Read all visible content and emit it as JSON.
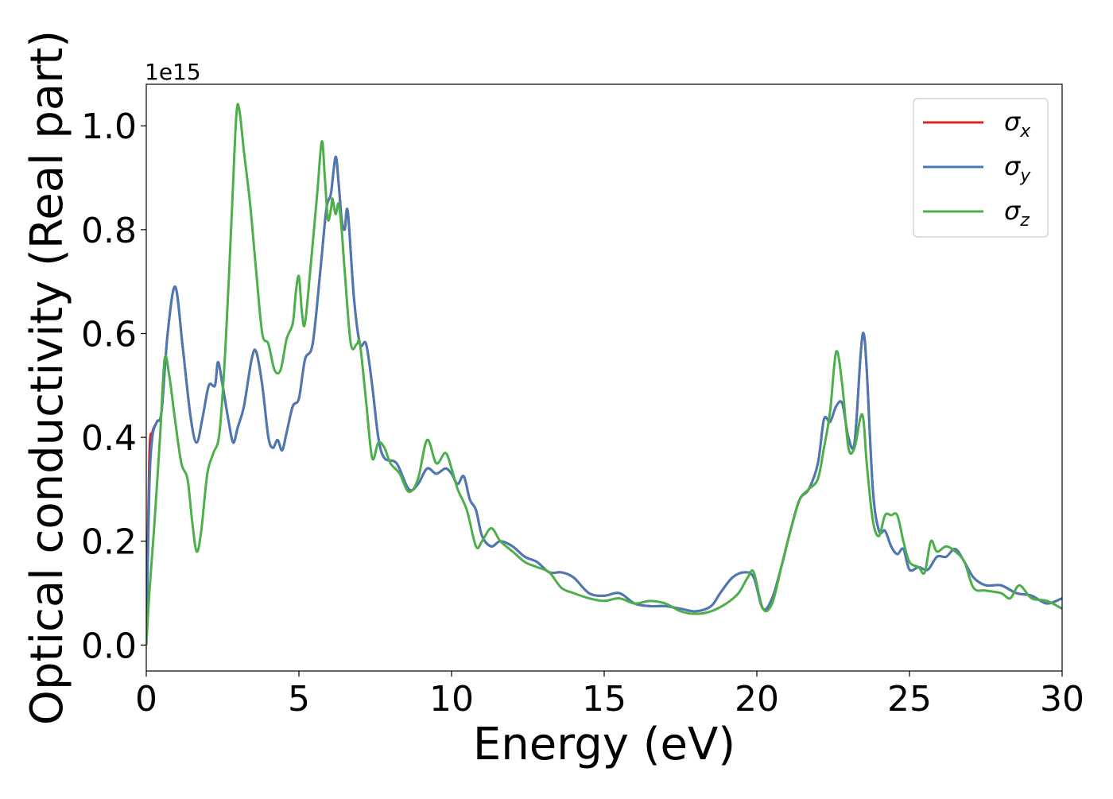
{
  "chart_data": {
    "type": "line",
    "xlabel": "Energy (eV)",
    "ylabel": "Optical conductivity (Real part)",
    "y_offset_text": "1e15",
    "xlim": [
      0,
      30
    ],
    "ylim": [
      -0.05,
      1.08
    ],
    "x_ticks": [
      0,
      5,
      10,
      15,
      20,
      25,
      30
    ],
    "x_tick_labels": [
      "0",
      "5",
      "10",
      "15",
      "20",
      "25",
      "30"
    ],
    "y_ticks": [
      0.0,
      0.2,
      0.4,
      0.6,
      0.8,
      1.0
    ],
    "y_tick_labels": [
      "0.0",
      "0.2",
      "0.4",
      "0.6",
      "0.8",
      "1.0"
    ],
    "grid": false,
    "legend_position": "top-right",
    "series": [
      {
        "name": "σx",
        "symbol": "σ",
        "subscript": "x",
        "color": "#d62728",
        "x": [
          0,
          0.1,
          0.2,
          0.35,
          0.5,
          0.7,
          0.95,
          1.2,
          1.45,
          1.65,
          1.85,
          2.05,
          2.25,
          2.35,
          2.5,
          2.7,
          2.85,
          3.0,
          3.2,
          3.45,
          3.6,
          3.8,
          4.0,
          4.15,
          4.3,
          4.45,
          4.6,
          4.8,
          5.0,
          5.2,
          5.45,
          5.7,
          5.9,
          6.05,
          6.2,
          6.3,
          6.4,
          6.5,
          6.6,
          6.8,
          7.0,
          7.2,
          7.4,
          7.6,
          7.8,
          8.2,
          8.6,
          8.9,
          9.2,
          9.5,
          9.8,
          10.0,
          10.2,
          10.4,
          10.6,
          10.8,
          11.0,
          11.3,
          11.6,
          12.0,
          12.4,
          12.8,
          13.2,
          13.6,
          14.0,
          14.5,
          15.0,
          15.5,
          16.0,
          16.5,
          17.0,
          17.5,
          18.0,
          18.5,
          18.8,
          19.2,
          19.6,
          19.9,
          20.2,
          20.5,
          20.8,
          21.1,
          21.4,
          21.7,
          22.0,
          22.2,
          22.4,
          22.6,
          22.8,
          23.0,
          23.2,
          23.4,
          23.5,
          23.6,
          23.8,
          24.0,
          24.2,
          24.4,
          24.6,
          24.8,
          25.0,
          25.3,
          25.6,
          25.9,
          26.2,
          26.5,
          26.8,
          27.1,
          27.5,
          28.0,
          28.5,
          29.0,
          29.5,
          30.0
        ],
        "y": [
          0.0,
          0.36,
          0.41,
          0.43,
          0.45,
          0.6,
          0.69,
          0.57,
          0.44,
          0.39,
          0.44,
          0.5,
          0.5,
          0.545,
          0.5,
          0.43,
          0.39,
          0.42,
          0.46,
          0.55,
          0.565,
          0.5,
          0.4,
          0.38,
          0.395,
          0.375,
          0.41,
          0.46,
          0.475,
          0.55,
          0.58,
          0.72,
          0.84,
          0.87,
          0.94,
          0.89,
          0.82,
          0.8,
          0.835,
          0.67,
          0.58,
          0.58,
          0.5,
          0.4,
          0.36,
          0.35,
          0.3,
          0.31,
          0.34,
          0.33,
          0.34,
          0.33,
          0.31,
          0.325,
          0.28,
          0.26,
          0.21,
          0.19,
          0.2,
          0.19,
          0.17,
          0.16,
          0.14,
          0.14,
          0.13,
          0.1,
          0.095,
          0.1,
          0.08,
          0.075,
          0.075,
          0.07,
          0.065,
          0.075,
          0.1,
          0.13,
          0.14,
          0.13,
          0.07,
          0.09,
          0.15,
          0.22,
          0.28,
          0.3,
          0.35,
          0.435,
          0.43,
          0.46,
          0.465,
          0.4,
          0.39,
          0.56,
          0.6,
          0.53,
          0.3,
          0.22,
          0.22,
          0.19,
          0.175,
          0.185,
          0.145,
          0.15,
          0.145,
          0.17,
          0.17,
          0.185,
          0.16,
          0.13,
          0.115,
          0.115,
          0.1,
          0.095,
          0.08,
          0.09
        ]
      },
      {
        "name": "σy",
        "symbol": "σ",
        "subscript": "y",
        "color": "#4a7ab5",
        "x": [
          0,
          0.1,
          0.2,
          0.35,
          0.5,
          0.7,
          0.95,
          1.2,
          1.45,
          1.65,
          1.85,
          2.05,
          2.25,
          2.35,
          2.5,
          2.7,
          2.85,
          3.0,
          3.2,
          3.45,
          3.6,
          3.8,
          4.0,
          4.15,
          4.3,
          4.45,
          4.6,
          4.8,
          5.0,
          5.2,
          5.45,
          5.7,
          5.9,
          6.05,
          6.2,
          6.3,
          6.4,
          6.5,
          6.6,
          6.8,
          7.0,
          7.2,
          7.4,
          7.6,
          7.8,
          8.2,
          8.6,
          8.9,
          9.2,
          9.5,
          9.8,
          10.0,
          10.2,
          10.4,
          10.6,
          10.8,
          11.0,
          11.3,
          11.6,
          12.0,
          12.4,
          12.8,
          13.2,
          13.6,
          14.0,
          14.5,
          15.0,
          15.5,
          16.0,
          16.5,
          17.0,
          17.5,
          18.0,
          18.5,
          18.8,
          19.2,
          19.6,
          19.9,
          20.2,
          20.5,
          20.8,
          21.1,
          21.4,
          21.7,
          22.0,
          22.2,
          22.4,
          22.6,
          22.8,
          23.0,
          23.2,
          23.4,
          23.5,
          23.6,
          23.8,
          24.0,
          24.2,
          24.4,
          24.6,
          24.8,
          25.0,
          25.3,
          25.6,
          25.9,
          26.2,
          26.5,
          26.8,
          27.1,
          27.5,
          28.0,
          28.5,
          29.0,
          29.5,
          30.0
        ],
        "y": [
          0.0,
          0.3,
          0.4,
          0.43,
          0.45,
          0.6,
          0.69,
          0.57,
          0.44,
          0.39,
          0.44,
          0.5,
          0.5,
          0.545,
          0.5,
          0.43,
          0.39,
          0.42,
          0.46,
          0.55,
          0.565,
          0.5,
          0.4,
          0.38,
          0.395,
          0.375,
          0.41,
          0.46,
          0.475,
          0.55,
          0.58,
          0.72,
          0.84,
          0.87,
          0.94,
          0.89,
          0.82,
          0.8,
          0.835,
          0.67,
          0.58,
          0.58,
          0.5,
          0.4,
          0.36,
          0.35,
          0.3,
          0.31,
          0.34,
          0.33,
          0.34,
          0.33,
          0.31,
          0.325,
          0.28,
          0.26,
          0.21,
          0.19,
          0.2,
          0.19,
          0.17,
          0.16,
          0.14,
          0.14,
          0.13,
          0.1,
          0.095,
          0.1,
          0.08,
          0.075,
          0.075,
          0.07,
          0.065,
          0.075,
          0.1,
          0.13,
          0.14,
          0.13,
          0.07,
          0.09,
          0.15,
          0.22,
          0.28,
          0.3,
          0.35,
          0.435,
          0.43,
          0.46,
          0.465,
          0.4,
          0.39,
          0.56,
          0.6,
          0.53,
          0.3,
          0.22,
          0.22,
          0.19,
          0.175,
          0.185,
          0.145,
          0.15,
          0.145,
          0.17,
          0.17,
          0.185,
          0.16,
          0.13,
          0.115,
          0.115,
          0.1,
          0.095,
          0.08,
          0.09
        ]
      },
      {
        "name": "σz",
        "symbol": "σ",
        "subscript": "z",
        "color": "#4daf4a",
        "x": [
          0,
          0.1,
          0.25,
          0.45,
          0.6,
          0.75,
          0.95,
          1.15,
          1.35,
          1.5,
          1.65,
          1.8,
          2.0,
          2.2,
          2.4,
          2.6,
          2.8,
          2.95,
          3.05,
          3.2,
          3.4,
          3.6,
          3.8,
          4.0,
          4.2,
          4.4,
          4.6,
          4.8,
          4.9,
          5.0,
          5.1,
          5.2,
          5.4,
          5.6,
          5.75,
          5.85,
          5.95,
          6.05,
          6.1,
          6.2,
          6.3,
          6.4,
          6.5,
          6.7,
          6.9,
          7.0,
          7.2,
          7.4,
          7.6,
          7.8,
          8.0,
          8.3,
          8.6,
          8.9,
          9.2,
          9.5,
          9.8,
          10.0,
          10.2,
          10.5,
          10.8,
          11.0,
          11.3,
          11.6,
          12.0,
          12.4,
          12.8,
          13.2,
          13.6,
          14.0,
          14.5,
          15.0,
          15.5,
          16.0,
          16.5,
          17.0,
          17.5,
          18.0,
          18.5,
          19.0,
          19.4,
          19.7,
          19.9,
          20.2,
          20.5,
          20.8,
          21.1,
          21.4,
          21.7,
          22.0,
          22.2,
          22.4,
          22.6,
          22.8,
          23.0,
          23.2,
          23.4,
          23.5,
          23.6,
          23.8,
          24.0,
          24.2,
          24.4,
          24.6,
          24.8,
          25.0,
          25.3,
          25.5,
          25.7,
          25.9,
          26.2,
          26.5,
          26.8,
          27.1,
          27.5,
          28.0,
          28.3,
          28.6,
          29.0,
          29.5,
          30.0
        ],
        "y": [
          0.0,
          0.1,
          0.22,
          0.4,
          0.55,
          0.52,
          0.43,
          0.35,
          0.32,
          0.24,
          0.18,
          0.22,
          0.33,
          0.37,
          0.41,
          0.58,
          0.83,
          1.02,
          1.03,
          0.95,
          0.85,
          0.72,
          0.6,
          0.58,
          0.53,
          0.53,
          0.59,
          0.62,
          0.68,
          0.71,
          0.64,
          0.62,
          0.74,
          0.87,
          0.97,
          0.9,
          0.82,
          0.84,
          0.86,
          0.83,
          0.85,
          0.8,
          0.72,
          0.58,
          0.58,
          0.58,
          0.47,
          0.36,
          0.39,
          0.38,
          0.35,
          0.33,
          0.295,
          0.32,
          0.395,
          0.35,
          0.37,
          0.34,
          0.3,
          0.26,
          0.19,
          0.2,
          0.225,
          0.2,
          0.18,
          0.16,
          0.15,
          0.14,
          0.11,
          0.1,
          0.09,
          0.085,
          0.09,
          0.08,
          0.085,
          0.08,
          0.065,
          0.06,
          0.065,
          0.08,
          0.1,
          0.13,
          0.14,
          0.07,
          0.08,
          0.15,
          0.22,
          0.28,
          0.3,
          0.32,
          0.38,
          0.45,
          0.565,
          0.5,
          0.38,
          0.38,
          0.44,
          0.43,
          0.35,
          0.24,
          0.21,
          0.25,
          0.25,
          0.25,
          0.2,
          0.16,
          0.15,
          0.14,
          0.2,
          0.18,
          0.19,
          0.18,
          0.16,
          0.11,
          0.105,
          0.1,
          0.09,
          0.115,
          0.09,
          0.085,
          0.07
        ]
      }
    ]
  }
}
